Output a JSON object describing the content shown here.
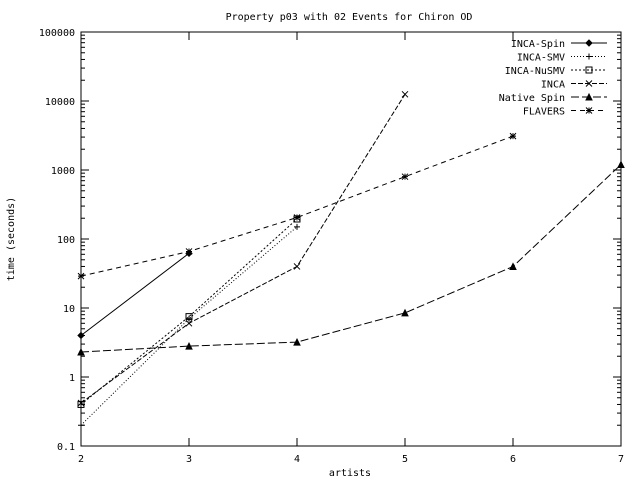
{
  "chart_data": {
    "type": "line",
    "title": "Property p03 with 02 Events for Chiron OD",
    "xlabel": "artists",
    "ylabel": "time (seconds)",
    "xlim": [
      2,
      7
    ],
    "ylim": [
      0.1,
      100000
    ],
    "yscale": "log",
    "grid": false,
    "legend_position": "top-right",
    "x_ticks": [
      2,
      3,
      4,
      5,
      6,
      7
    ],
    "x_tick_labels": [
      "2",
      "3",
      "4",
      "5",
      "6",
      "7"
    ],
    "y_ticks": [
      0.1,
      1,
      10,
      100,
      1000,
      10000,
      100000
    ],
    "y_tick_labels": [
      "0.1",
      "1",
      "10",
      "100",
      "1000",
      "10000",
      "100000"
    ],
    "series": [
      {
        "name": "INCA-Spin",
        "x": [
          2,
          3
        ],
        "values": [
          4,
          62
        ],
        "dash": "",
        "marker": "diamond"
      },
      {
        "name": "INCA-SMV",
        "x": [
          2,
          3,
          4
        ],
        "values": [
          0.2,
          7,
          150
        ],
        "dash": "1,2",
        "marker": "plus"
      },
      {
        "name": "INCA-NuSMV",
        "x": [
          2,
          3,
          4
        ],
        "values": [
          0.4,
          7.5,
          195
        ],
        "dash": "2,2",
        "marker": "square"
      },
      {
        "name": "INCA",
        "x": [
          2,
          3,
          4,
          5
        ],
        "values": [
          0.42,
          6,
          40,
          12500
        ],
        "dash": "5,2",
        "marker": "cross"
      },
      {
        "name": "Native Spin",
        "x": [
          2,
          3,
          4,
          5,
          6,
          7
        ],
        "values": [
          2.3,
          2.8,
          3.2,
          8.5,
          40,
          1200
        ],
        "dash": "8,3",
        "marker": "triangle"
      },
      {
        "name": "FLAVERS",
        "x": [
          2,
          3,
          4,
          5,
          6
        ],
        "values": [
          29,
          66,
          205,
          800,
          3100
        ],
        "dash": "5,4",
        "marker": "star"
      }
    ]
  }
}
